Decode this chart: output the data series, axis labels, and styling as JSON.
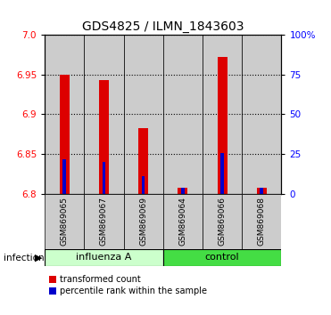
{
  "title": "GDS4825 / ILMN_1843603",
  "samples": [
    "GSM869065",
    "GSM869067",
    "GSM869069",
    "GSM869064",
    "GSM869066",
    "GSM869068"
  ],
  "red_values": [
    6.95,
    6.943,
    6.883,
    6.808,
    6.972,
    6.808
  ],
  "blue_values": [
    6.843,
    6.84,
    6.822,
    6.807,
    6.851,
    6.808
  ],
  "base_value": 6.8,
  "ylim_lo": 6.8,
  "ylim_hi": 7.0,
  "yticks": [
    6.8,
    6.85,
    6.9,
    6.95,
    7.0
  ],
  "right_yticks_vals": [
    0,
    25,
    50,
    75,
    100
  ],
  "right_yticks_pos": [
    6.8,
    6.85,
    6.9,
    6.95,
    7.0
  ],
  "red_bar_width": 0.25,
  "blue_bar_width": 0.08,
  "red_color": "#dd0000",
  "blue_color": "#0000cc",
  "col_bg": "#cccccc",
  "plot_bg": "#ffffff",
  "influenza_color": "#ccffcc",
  "control_color": "#44dd44",
  "infection_label": "infection",
  "legend_red": "transformed count",
  "legend_blue": "percentile rank within the sample",
  "title_fontsize": 10,
  "tick_fontsize": 7.5,
  "sample_fontsize": 6.5,
  "group_fontsize": 8,
  "legend_fontsize": 7
}
